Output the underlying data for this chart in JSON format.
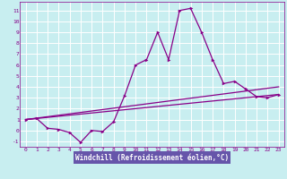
{
  "xlabel": "Windchill (Refroidissement éolien,°C)",
  "background_color": "#c8eef0",
  "grid_color": "#ffffff",
  "line_color": "#880088",
  "xlim": [
    -0.5,
    23.5
  ],
  "ylim": [
    -1.5,
    11.8
  ],
  "xticks": [
    0,
    1,
    2,
    3,
    4,
    5,
    6,
    7,
    8,
    9,
    10,
    11,
    12,
    13,
    14,
    15,
    16,
    17,
    18,
    19,
    20,
    21,
    22,
    23
  ],
  "yticks": [
    -1,
    0,
    1,
    2,
    3,
    4,
    5,
    6,
    7,
    8,
    9,
    10,
    11
  ],
  "line1_x": [
    0,
    1,
    2,
    3,
    4,
    5,
    6,
    7,
    8,
    9,
    10,
    11,
    12,
    13,
    14,
    15,
    16,
    17,
    18,
    19,
    20,
    21,
    22,
    23
  ],
  "line1_y": [
    1.0,
    1.1,
    0.2,
    0.1,
    -0.2,
    -1.1,
    0.0,
    -0.1,
    0.8,
    3.2,
    6.0,
    6.5,
    9.0,
    6.5,
    11.0,
    11.2,
    9.0,
    6.5,
    4.3,
    4.5,
    3.8,
    3.1,
    3.0,
    3.3
  ],
  "line2_x": [
    0,
    23
  ],
  "line2_y": [
    1.0,
    4.0
  ],
  "line3_x": [
    0,
    23
  ],
  "line3_y": [
    1.0,
    3.3
  ],
  "xlabel_bg": "#6655aa",
  "xlabel_color": "#ffffff"
}
